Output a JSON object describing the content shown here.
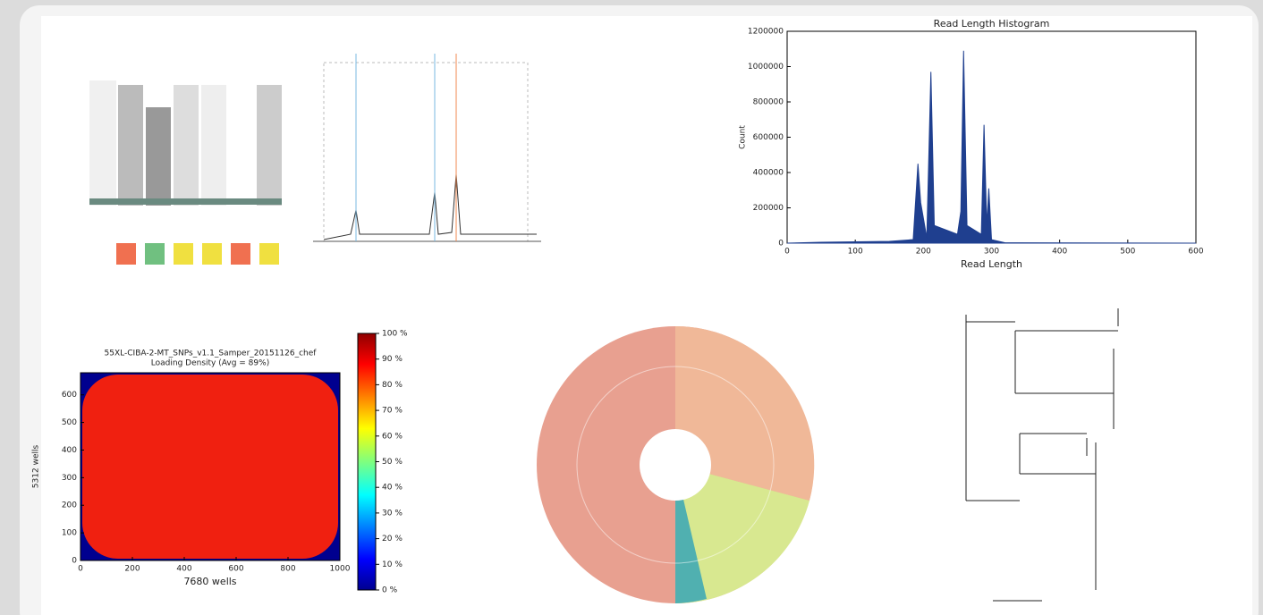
{
  "chart_data": [
    {
      "type": "area",
      "title": "Read Length Histogram",
      "xlabel": "Read Length",
      "ylabel": "Count",
      "color": "#1f3f8f",
      "x": [
        0,
        50,
        150,
        185,
        192,
        196,
        205,
        211,
        216,
        250,
        255,
        259,
        264,
        285,
        289,
        293,
        296,
        300,
        320,
        600
      ],
      "values": [
        0,
        5000,
        10000,
        20000,
        450000,
        230000,
        30000,
        970000,
        100000,
        50000,
        180000,
        1090000,
        100000,
        50000,
        670000,
        100000,
        310000,
        20000,
        2000,
        0
      ],
      "xlim": [
        0,
        600
      ],
      "xticks": [
        0,
        100,
        200,
        300,
        400,
        500,
        600
      ],
      "ylim": [
        0,
        1200000
      ],
      "yticks": [
        0,
        200000,
        400000,
        600000,
        800000,
        1000000,
        1200000
      ]
    },
    {
      "type": "heatmap",
      "title": "55XL-CIBA-2-MT_SNPs_v1.1_Samper_20151126_chef",
      "subtitle": "Loading Density (Avg = 89%)",
      "xlabel": "7680 wells",
      "ylabel": "5312 wells",
      "xlim": [
        0,
        1000
      ],
      "xticks": [
        0,
        200,
        400,
        600,
        800,
        1000
      ],
      "ylim": [
        0,
        680
      ],
      "yticks": [
        0,
        100,
        200,
        300,
        400,
        500,
        600
      ],
      "clim": [
        0,
        100
      ],
      "cticks": [
        {
          "value": 0,
          "label": "0 %"
        },
        {
          "value": 10,
          "label": "10 %"
        },
        {
          "value": 20,
          "label": "20 %"
        },
        {
          "value": 30,
          "label": "30 %"
        },
        {
          "value": 40,
          "label": "40 %"
        },
        {
          "value": 50,
          "label": "50 %"
        },
        {
          "value": 60,
          "label": "60 %"
        },
        {
          "value": 70,
          "label": "70 %"
        },
        {
          "value": 80,
          "label": "80 %"
        },
        {
          "value": 90,
          "label": "90 %"
        },
        {
          "value": 100,
          "label": "100 %"
        }
      ]
    }
  ]
}
